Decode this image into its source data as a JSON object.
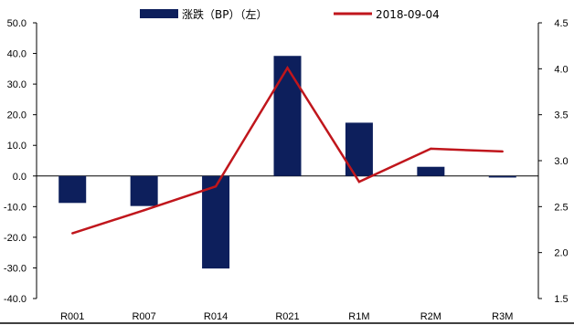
{
  "colors": {
    "bar": "#0d1f5c",
    "line": "#c0161c",
    "axis": "#000000"
  },
  "legend": {
    "bar_label": "涨跌（BP）（左）",
    "line_label": "2018-09-04"
  },
  "chart_data": {
    "type": "bar",
    "categories": [
      "R001",
      "R007",
      "R014",
      "R021",
      "R1M",
      "R2M",
      "R3M"
    ],
    "series": [
      {
        "name": "涨跌（BP）（左）",
        "type": "bar",
        "axis": "left",
        "values": [
          -8.8,
          -9.8,
          -30.2,
          39.2,
          17.4,
          3.0,
          -0.5
        ]
      },
      {
        "name": "2018-09-04",
        "type": "line",
        "axis": "right",
        "values": [
          2.21,
          2.46,
          2.72,
          4.01,
          2.77,
          3.13,
          3.1
        ]
      }
    ],
    "ylim": [
      -40,
      50
    ],
    "y2lim": [
      1.5,
      4.5
    ],
    "yticks": [
      "50.0",
      "40.0",
      "30.0",
      "20.0",
      "10.0",
      "0.0",
      "-10.0",
      "-20.0",
      "-30.0",
      "-40.0"
    ],
    "y2ticks": [
      "4.5",
      "4.0",
      "3.5",
      "3.0",
      "2.5",
      "2.0",
      "1.5"
    ],
    "grid": false,
    "legend_position": "top"
  }
}
